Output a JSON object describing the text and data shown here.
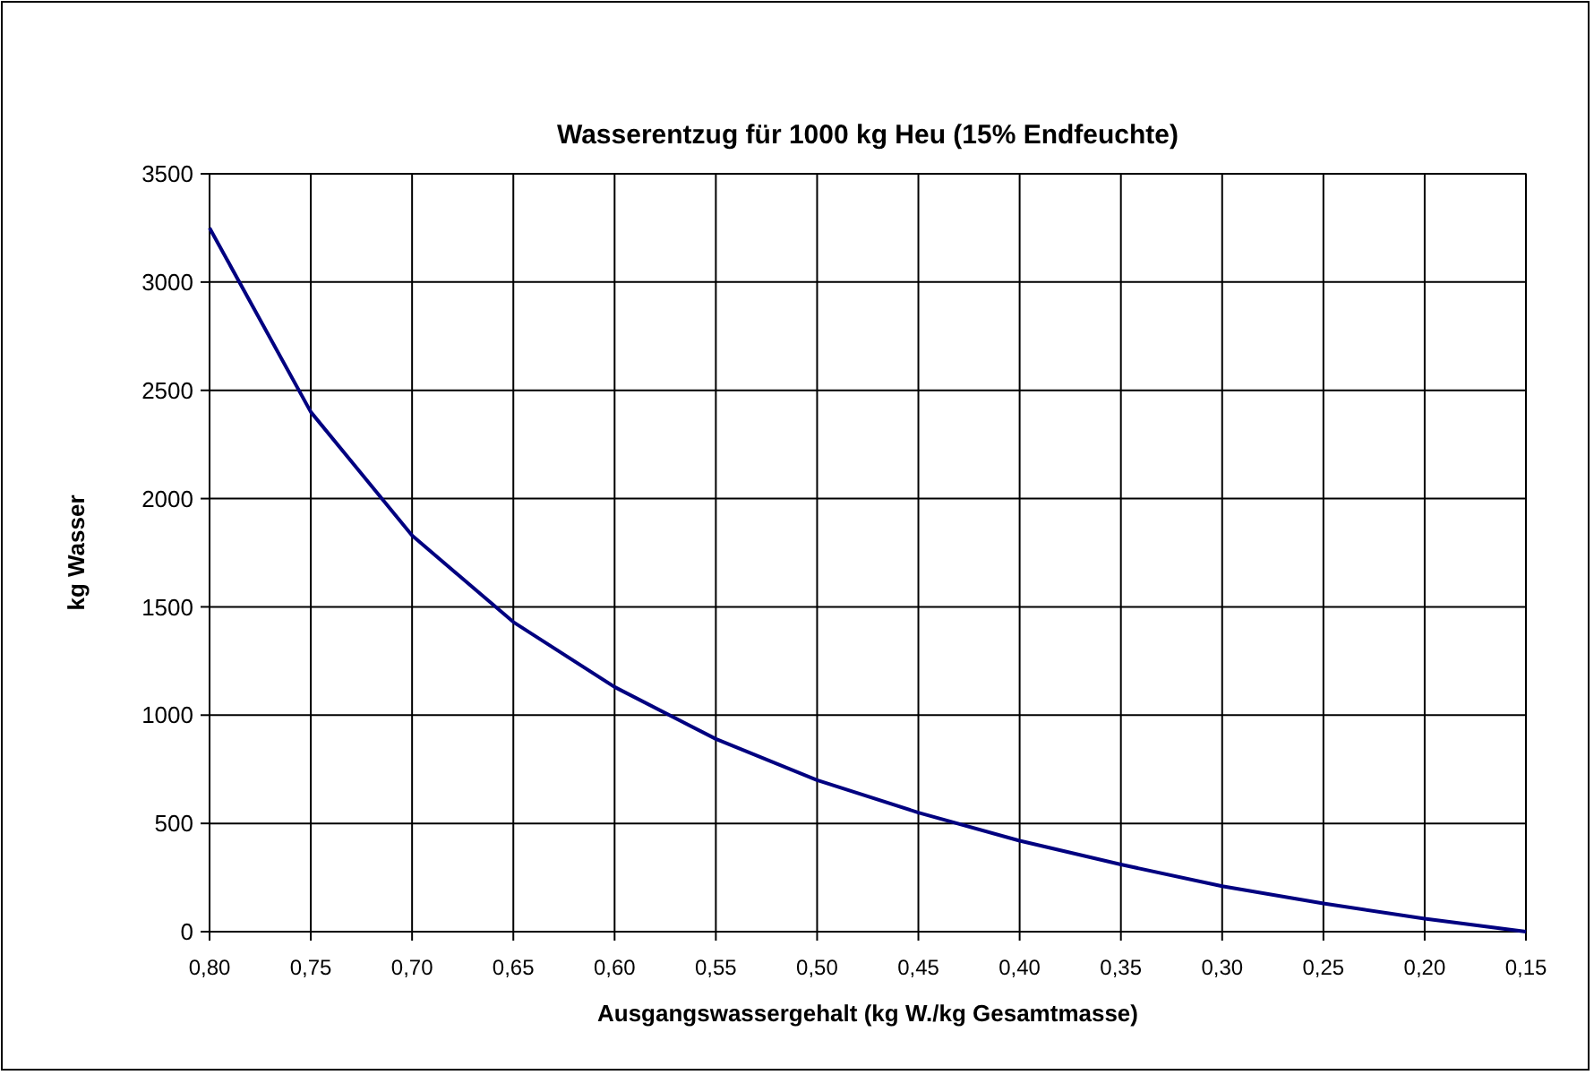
{
  "chart_data": {
    "type": "line",
    "title": "Wasserentzug für 1000 kg Heu (15% Endfeuchte)",
    "xlabel": "Ausgangswassergehalt (kg W./kg Gesamtmasse)",
    "ylabel": "kg Wasser",
    "categories": [
      "0,80",
      "0,75",
      "0,70",
      "0,65",
      "0,60",
      "0,55",
      "0,50",
      "0,45",
      "0,40",
      "0,35",
      "0,30",
      "0,25",
      "0,20",
      "0,15"
    ],
    "series": [
      {
        "color": "#000080",
        "values": [
          3250,
          2400,
          1830,
          1430,
          1130,
          890,
          700,
          550,
          420,
          310,
          210,
          130,
          60,
          0
        ]
      }
    ],
    "ylim": [
      0,
      3500
    ],
    "yticks": [
      0,
      500,
      1000,
      1500,
      2000,
      2500,
      3000,
      3500
    ],
    "grid": true,
    "marker": "none",
    "line_style": "solid"
  }
}
